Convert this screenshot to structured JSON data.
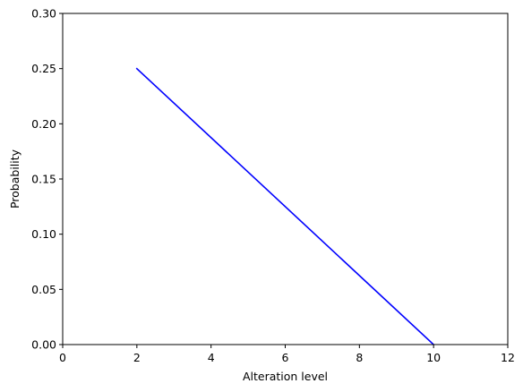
{
  "chart_data": {
    "type": "line",
    "title": "",
    "xlabel": "Alteration level",
    "ylabel": "Probability",
    "xlim": [
      0,
      12
    ],
    "ylim": [
      0,
      0.3
    ],
    "xticks": [
      "0",
      "2",
      "4",
      "6",
      "8",
      "10",
      "12"
    ],
    "yticks": [
      "0.00",
      "0.05",
      "0.10",
      "0.15",
      "0.20",
      "0.25",
      "0.30"
    ],
    "grid": false,
    "legend": "none",
    "series": [
      {
        "color": "#0000ff",
        "x": [
          2,
          10
        ],
        "y": [
          0.25,
          0.0
        ]
      }
    ]
  }
}
